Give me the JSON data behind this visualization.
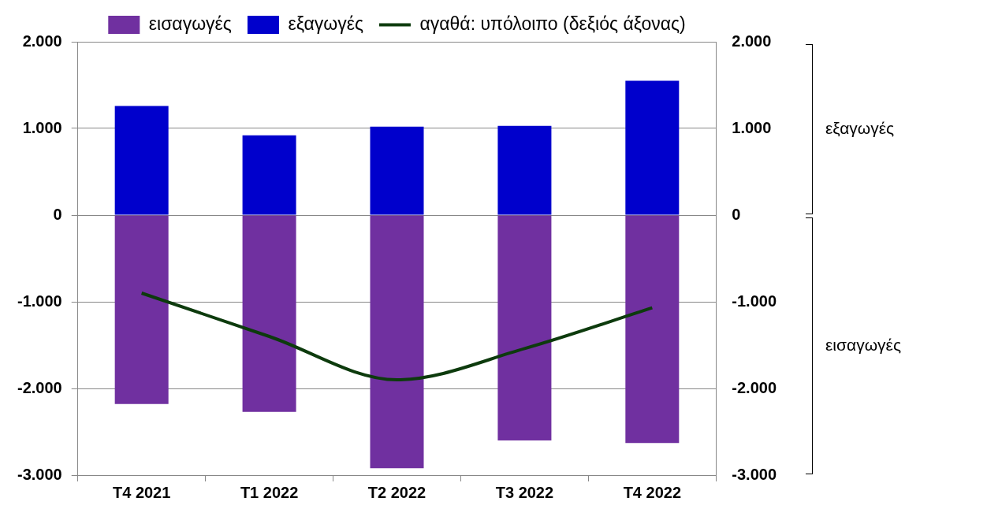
{
  "chart_data": {
    "type": "bar",
    "stacked": true,
    "categories": [
      "T4 2021",
      "T1 2022",
      "T2 2022",
      "T3 2022",
      "T4 2022"
    ],
    "series": [
      {
        "name": "εισαγωγές",
        "color": "#7030a0",
        "values": [
          -2180,
          -2270,
          -2920,
          -2600,
          -2630
        ]
      },
      {
        "name": "εξαγωγές",
        "color": "#0000cc",
        "values": [
          1260,
          920,
          1020,
          1030,
          1550
        ]
      },
      {
        "name": "αγαθά: υπόλοιπο (δεξιός άξονας)",
        "type": "line",
        "axis": "y2",
        "color": "#0d3b0d",
        "values": [
          -900,
          -1400,
          -1900,
          -1540,
          -1070
        ]
      }
    ],
    "ylim": [
      -3000,
      2000
    ],
    "yticks": [
      {
        "value": 2000,
        "label": "2.000"
      },
      {
        "value": 1000,
        "label": "1.000"
      },
      0,
      {
        "value": -1000,
        "label": "-1.000"
      },
      {
        "value": -2000,
        "label": "-2.000"
      },
      {
        "value": -3000,
        "label": "-3.000"
      }
    ],
    "y2lim": [
      -3000,
      2000
    ],
    "y2ticks": [
      {
        "value": 2000,
        "label": "2.000"
      },
      {
        "value": 1000,
        "label": "1.000"
      },
      0,
      {
        "value": -1000,
        "label": "-1.000"
      },
      {
        "value": -2000,
        "label": "-2.000"
      },
      {
        "value": -3000,
        "label": "-3.000"
      }
    ],
    "grid": "y",
    "legend": "top",
    "marker": "none",
    "line_style": "solid",
    "annotations": [
      "εξαγωγές",
      "εισαγωγές"
    ]
  }
}
